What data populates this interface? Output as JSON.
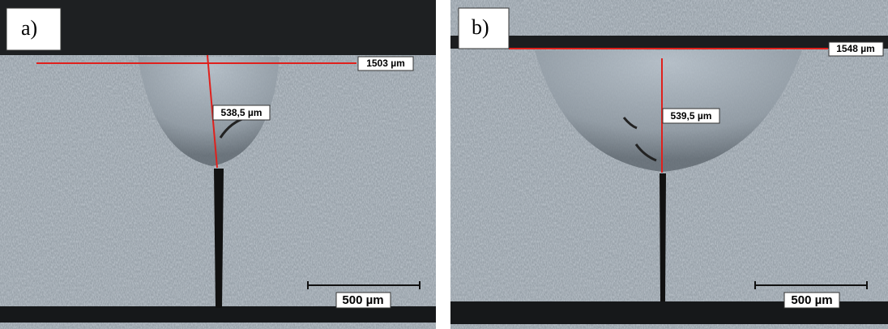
{
  "panels": [
    {
      "label": "a)",
      "width_measure": "1503 µm",
      "depth_measure": "538,5 µm",
      "scale_bar": "500 µm"
    },
    {
      "label": "b)",
      "width_measure": "1548 µm",
      "depth_measure": "539,5 µm",
      "scale_bar": "500 µm"
    }
  ]
}
